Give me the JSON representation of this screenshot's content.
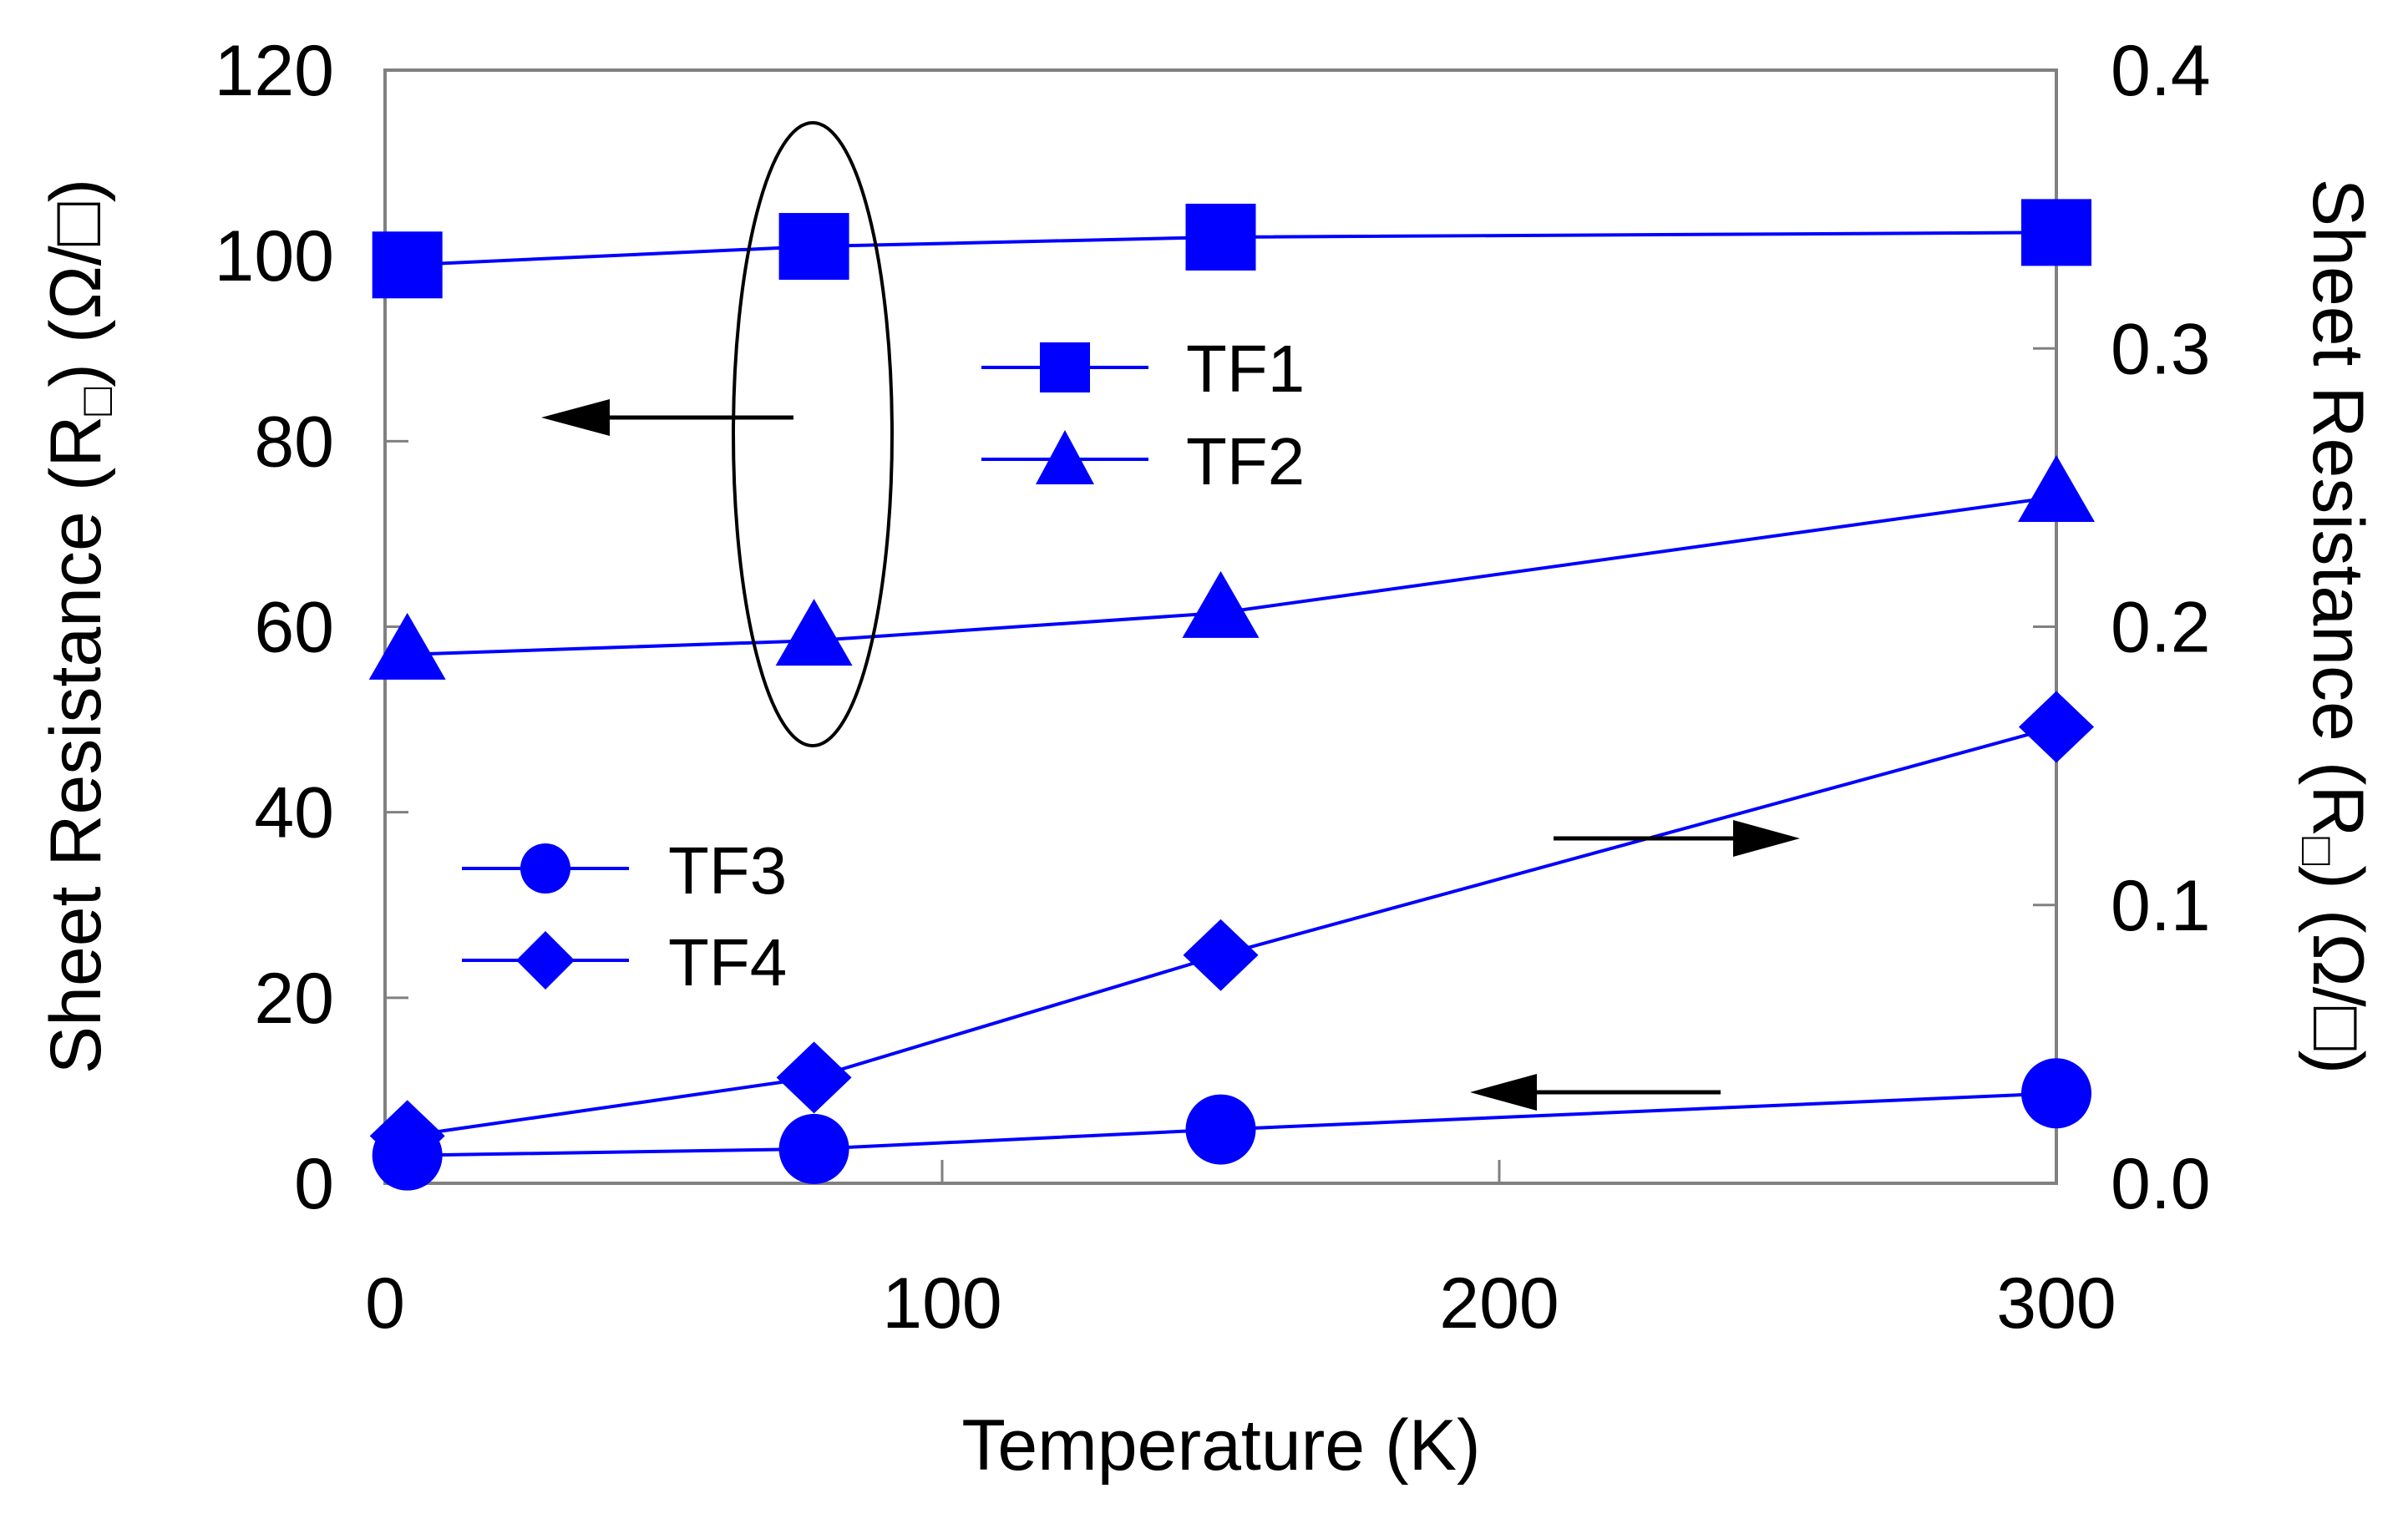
{
  "chart_data": {
    "type": "line",
    "xlabel": "Temperature (K)",
    "ylabel_left": {
      "prefix": "Sheet Resistance (R",
      "sub": "□",
      "suffix": ") (Ω/□)"
    },
    "ylabel_right": {
      "prefix": "Sheet Resistance (R",
      "sub": "□",
      "suffix": ") (Ω/□)"
    },
    "xlim": [
      0,
      300
    ],
    "ylim_left": [
      0,
      120
    ],
    "ylim_right": [
      0.0,
      0.4
    ],
    "x_ticks": [
      0,
      100,
      200,
      300
    ],
    "x_tick_labels": [
      "0",
      "100",
      "200",
      "300"
    ],
    "y_left_ticks": [
      0,
      20,
      40,
      60,
      80,
      100,
      120
    ],
    "y_left_tick_labels": [
      "0",
      "20",
      "40",
      "60",
      "80",
      "100",
      "120"
    ],
    "y_right_ticks": [
      0.0,
      0.1,
      0.2,
      0.3,
      0.4
    ],
    "y_right_tick_labels": [
      "0.0",
      "0.1",
      "0.2",
      "0.3",
      "0.4"
    ],
    "grid": false,
    "line_color": "#0000ff",
    "series": [
      {
        "name": "TF1",
        "axis": "left",
        "marker": "square",
        "x": [
          4,
          77,
          150,
          300
        ],
        "y": [
          99,
          101,
          102,
          102.5
        ]
      },
      {
        "name": "TF2",
        "axis": "left",
        "marker": "triangle",
        "x": [
          4,
          77,
          150,
          300
        ],
        "y": [
          57,
          58.5,
          61.5,
          74
        ]
      },
      {
        "name": "TF3",
        "axis": "left",
        "marker": "circle",
        "x": [
          4,
          77,
          150,
          300
        ],
        "y": [
          3,
          3.7,
          5.8,
          9.7
        ]
      },
      {
        "name": "TF4",
        "axis": "right",
        "marker": "diamond",
        "x": [
          4,
          77,
          150,
          300
        ],
        "y": [
          0.017,
          0.038,
          0.082,
          0.164
        ]
      }
    ],
    "legends": [
      {
        "position": "center-top",
        "entries": [
          "TF1",
          "TF2"
        ]
      },
      {
        "position": "lower-left",
        "entries": [
          "TF3",
          "TF4"
        ]
      }
    ],
    "annotations": [
      {
        "kind": "ellipse",
        "note": "groups TF1 and TF2 points near 77 K"
      },
      {
        "kind": "arrow",
        "direction": "left"
      },
      {
        "kind": "arrow",
        "direction": "right"
      },
      {
        "kind": "arrow",
        "direction": "left"
      }
    ]
  }
}
